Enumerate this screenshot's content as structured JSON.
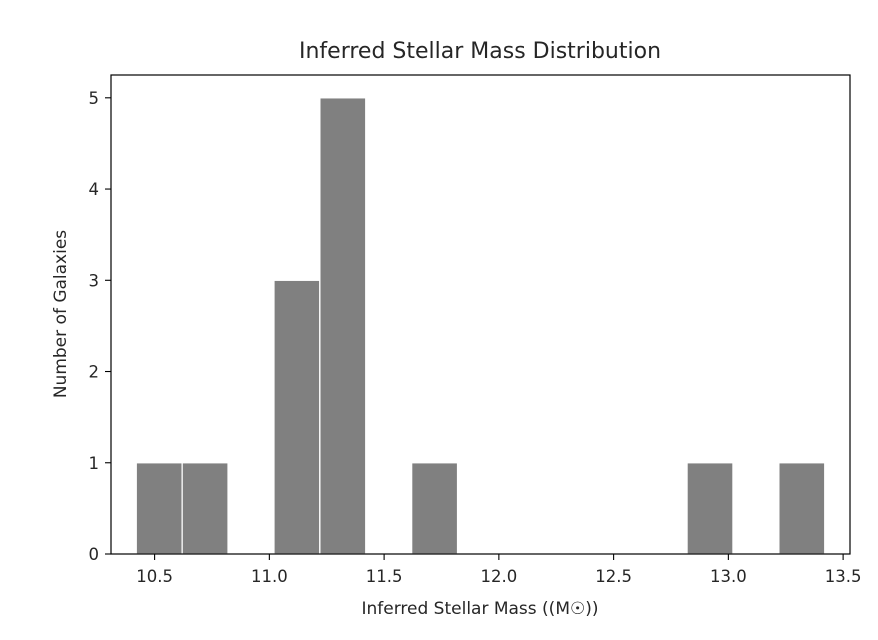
{
  "chart_data": {
    "type": "bar",
    "title": "Inferred Stellar Mass Distribution",
    "xlabel": "Inferred Stellar Mass ((M☉))",
    "ylabel": "Number of Galaxies",
    "xlim": [
      10.31,
      13.53
    ],
    "ylim": [
      0,
      5.25
    ],
    "x_ticks": [
      10.5,
      11.0,
      11.5,
      12.0,
      12.5,
      13.0,
      13.5
    ],
    "x_tick_labels": [
      "10.5",
      "11.0",
      "11.5",
      "12.0",
      "12.5",
      "13.0",
      "13.5"
    ],
    "y_ticks": [
      0,
      1,
      2,
      3,
      4,
      5
    ],
    "y_tick_labels": [
      "0",
      "1",
      "2",
      "3",
      "4",
      "5"
    ],
    "grid": false,
    "bar_color": "#808080",
    "bars": [
      {
        "x0": 10.42,
        "x1": 10.62,
        "value": 1
      },
      {
        "x0": 10.62,
        "x1": 10.82,
        "value": 1
      },
      {
        "x0": 11.02,
        "x1": 11.22,
        "value": 3
      },
      {
        "x0": 11.22,
        "x1": 11.42,
        "value": 5
      },
      {
        "x0": 11.62,
        "x1": 11.82,
        "value": 1
      },
      {
        "x0": 12.82,
        "x1": 13.02,
        "value": 1
      },
      {
        "x0": 13.22,
        "x1": 13.42,
        "value": 1
      }
    ]
  }
}
